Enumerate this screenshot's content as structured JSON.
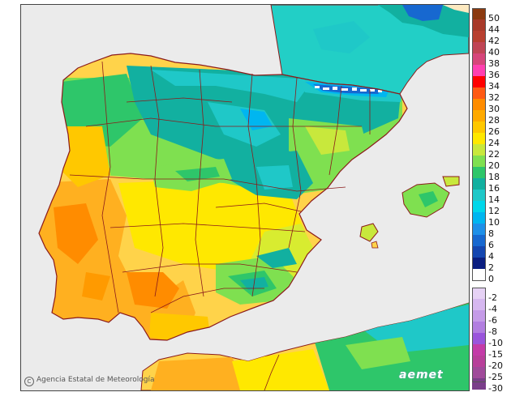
{
  "credit": {
    "text": "Agencia Estatal de Meteorología",
    "symbol": "C"
  },
  "brand": "aemet",
  "legend": {
    "warm": [
      {
        "label": "50",
        "color": "#8b3a10"
      },
      {
        "label": "44",
        "color": "#a83a2a"
      },
      {
        "label": "42",
        "color": "#b84030"
      },
      {
        "label": "40",
        "color": "#c04555"
      },
      {
        "label": "38",
        "color": "#d6457a"
      },
      {
        "label": "36",
        "color": "#ff3fb0"
      },
      {
        "label": "34",
        "color": "#ff0000"
      },
      {
        "label": "32",
        "color": "#ff5a14"
      },
      {
        "label": "30",
        "color": "#ff8c00"
      },
      {
        "label": "28",
        "color": "#ffaa00"
      },
      {
        "label": "26",
        "color": "#ffc800"
      },
      {
        "label": "24",
        "color": "#ffe800"
      },
      {
        "label": "22",
        "color": "#c8e83c"
      },
      {
        "label": "20",
        "color": "#7fe050"
      },
      {
        "label": "18",
        "color": "#2ec66a"
      },
      {
        "label": "16",
        "color": "#12b0a0"
      },
      {
        "label": "14",
        "color": "#1fc8c8"
      },
      {
        "label": "12",
        "color": "#00d7ea"
      },
      {
        "label": "10",
        "color": "#00b6f0"
      },
      {
        "label": "8",
        "color": "#1e90e8"
      },
      {
        "label": "6",
        "color": "#1768d0"
      },
      {
        "label": "4",
        "color": "#1446b0"
      },
      {
        "label": "2",
        "color": "#0a1e80"
      },
      {
        "label": "0",
        "color": "#ffffff"
      }
    ],
    "cold": [
      {
        "label": "-2",
        "color": "#e6d2f5"
      },
      {
        "label": "-4",
        "color": "#d6b8f0"
      },
      {
        "label": "-6",
        "color": "#c59be8"
      },
      {
        "label": "-8",
        "color": "#b27ee0"
      },
      {
        "label": "-10",
        "color": "#9a55dc"
      },
      {
        "label": "-15",
        "color": "#c43ca8"
      },
      {
        "label": "-20",
        "color": "#b8409a"
      },
      {
        "label": "-25",
        "color": "#a04a9a"
      },
      {
        "label": "-30",
        "color": "#7a3e8a"
      }
    ]
  },
  "colors": {
    "sea": "#ebebeb",
    "france": "#22cfc6",
    "border": "#8b1a1a",
    "snow": "#ffffff"
  }
}
